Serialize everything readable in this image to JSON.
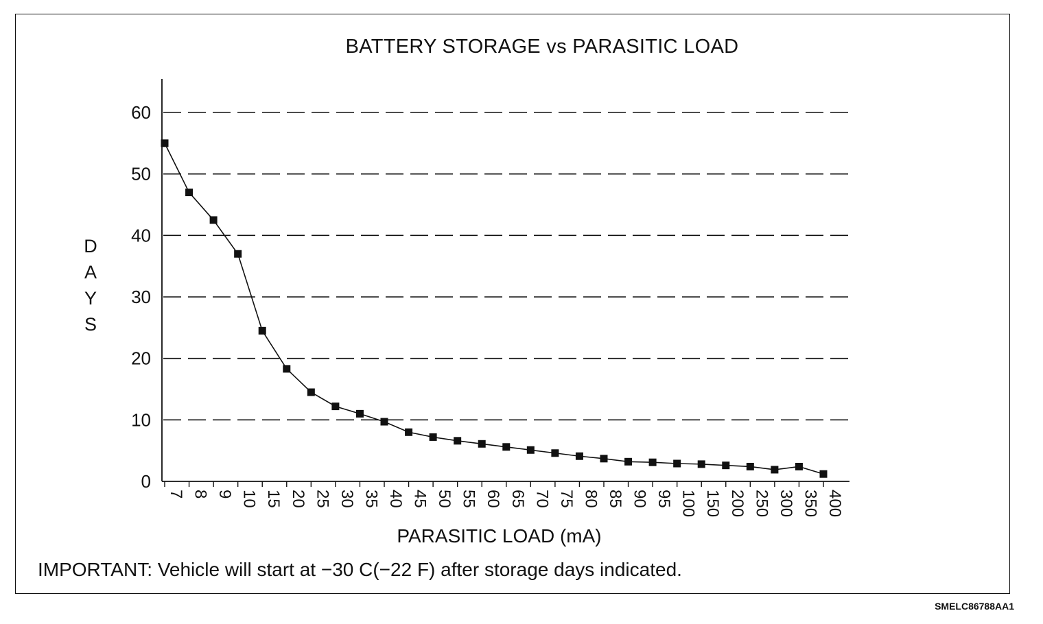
{
  "chart_data": {
    "type": "line",
    "title": "BATTERY STORAGE vs PARASITIC LOAD",
    "xlabel": "PARASITIC LOAD (mA)",
    "ylabel": "DAYS",
    "categories": [
      "7",
      "8",
      "9",
      "10",
      "15",
      "20",
      "25",
      "30",
      "35",
      "40",
      "45",
      "50",
      "55",
      "60",
      "65",
      "70",
      "75",
      "80",
      "85",
      "90",
      "95",
      "100",
      "150",
      "200",
      "250",
      "300",
      "350",
      "400"
    ],
    "series": [
      {
        "values": [
          55,
          47,
          42.5,
          37,
          24.5,
          18.3,
          14.5,
          12.2,
          11,
          9.7,
          8,
          7.2,
          6.6,
          6.1,
          5.6,
          5.1,
          4.6,
          4.1,
          3.7,
          3.2,
          3.1,
          2.9,
          2.8,
          2.6,
          2.4,
          1.9,
          2.4,
          1.2
        ]
      }
    ],
    "yticks": [
      0,
      10,
      20,
      30,
      40,
      50,
      60
    ],
    "ylim": [
      0,
      60
    ],
    "grid": "dashed horizontal",
    "marker": "square",
    "line_color": "#111111"
  },
  "note": "IMPORTANT: Vehicle will start at −30 C(−22 F) after storage days indicated.",
  "figure_code": "SMELC86788AA1"
}
